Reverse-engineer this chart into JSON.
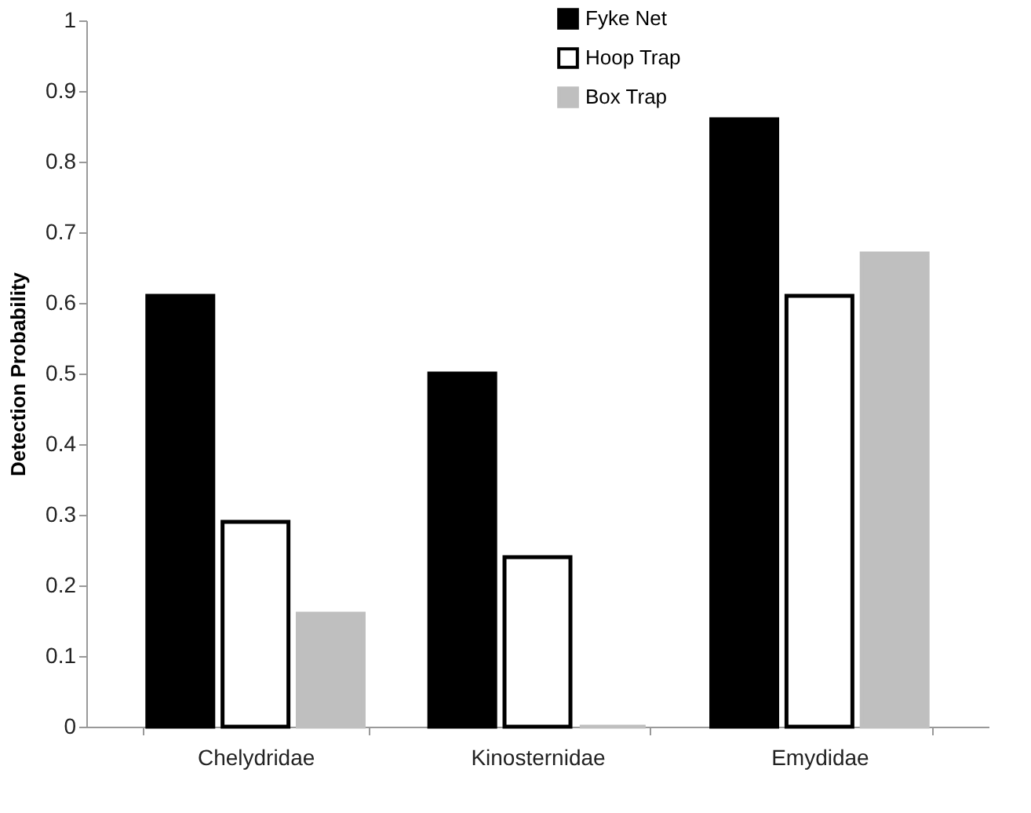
{
  "chart_data": {
    "type": "bar",
    "ylabel": "Detection Probability",
    "categories": [
      "Chelydridae",
      "Kinosternidae",
      "Emydidae"
    ],
    "series": [
      {
        "name": "Fyke Net",
        "color": "#000000",
        "values": [
          0.61,
          0.5,
          0.86
        ]
      },
      {
        "name": "Hoop Trap",
        "color": "#ffffff",
        "values": [
          0.29,
          0.24,
          0.61
        ]
      },
      {
        "name": "Box Trap",
        "color": "#bfbfbf",
        "values": [
          0.16,
          0,
          0.67
        ]
      }
    ],
    "ylim": [
      0,
      1
    ],
    "yticks": [
      {
        "value": 0,
        "label": "0"
      },
      0.1,
      0.2,
      0.3,
      0.4,
      0.5,
      0.6,
      0.7,
      0.8,
      0.9,
      {
        "value": 1,
        "label": "1"
      }
    ],
    "grid": false,
    "legend": "top right"
  }
}
